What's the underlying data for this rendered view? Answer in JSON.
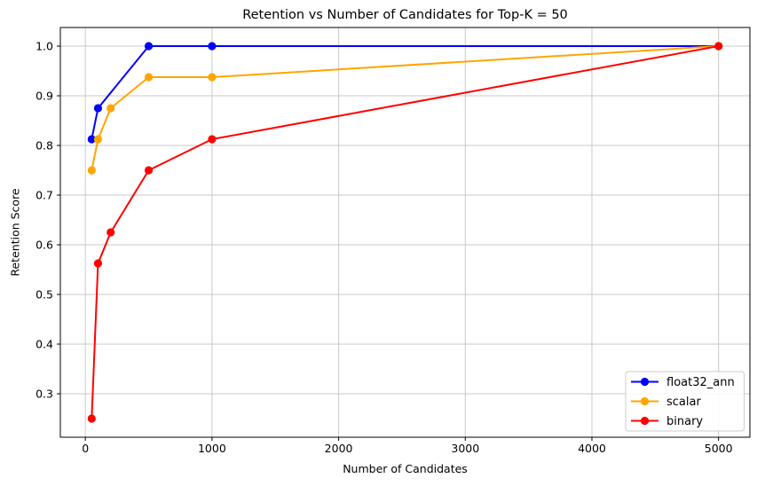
{
  "figure": {
    "background": "#ffffff",
    "text_color": "#000000",
    "spine_color": "#000000",
    "grid_color": "#c9c9c9"
  },
  "chart_data": {
    "type": "line",
    "title": "Retention vs Number of Candidates for Top-K = 50",
    "xlabel": "Number of Candidates",
    "ylabel": "Retention Score",
    "xlim": [
      -197.5,
      5247.5
    ],
    "ylim": [
      0.2125,
      1.0375
    ],
    "xticks": [
      0,
      1000,
      2000,
      3000,
      4000,
      5000
    ],
    "yticks": [
      0.3,
      0.4,
      0.5,
      0.6,
      0.7,
      0.8,
      0.9,
      1.0
    ],
    "grid": true,
    "legend": {
      "position": "lower right",
      "border_color": "#cccccc",
      "background": "rgba(255,255,255,0.85)"
    },
    "series": [
      {
        "name": "float32_ann",
        "color": "#0000ff",
        "x": [
          50,
          100,
          500,
          1000,
          5000
        ],
        "y": [
          0.8125,
          0.875,
          1.0,
          1.0,
          1.0
        ]
      },
      {
        "name": "scalar",
        "color": "#ffa500",
        "x": [
          50,
          100,
          200,
          500,
          1000,
          5000
        ],
        "y": [
          0.75,
          0.8125,
          0.875,
          0.9375,
          0.9375,
          1.0
        ]
      },
      {
        "name": "binary",
        "color": "#ff0000",
        "x": [
          50,
          100,
          200,
          500,
          1000,
          5000
        ],
        "y": [
          0.25,
          0.5625,
          0.625,
          0.75,
          0.8125,
          1.0
        ]
      }
    ]
  }
}
